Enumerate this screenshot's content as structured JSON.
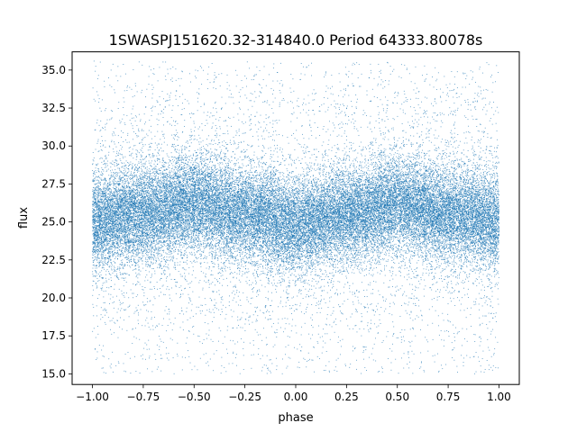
{
  "chart_data": {
    "type": "scatter",
    "title": "1SWASPJ151620.32-314840.0 Period 64333.80078s",
    "xlabel": "phase",
    "ylabel": "flux",
    "xlim": [
      -1.1,
      1.1
    ],
    "ylim": [
      14.3,
      36.2
    ],
    "x_ticks": [
      -1.0,
      -0.75,
      -0.5,
      -0.25,
      0.0,
      0.25,
      0.5,
      0.75,
      1.0
    ],
    "x_tick_labels": [
      "−1.00",
      "−0.75",
      "−0.50",
      "−0.25",
      "0.00",
      "0.25",
      "0.50",
      "0.75",
      "1.00"
    ],
    "y_ticks": [
      15.0,
      17.5,
      20.0,
      22.5,
      25.0,
      27.5,
      30.0,
      32.5,
      35.0
    ],
    "y_tick_labels": [
      "15.0",
      "17.5",
      "20.0",
      "22.5",
      "25.0",
      "27.5",
      "30.0",
      "32.5",
      "35.0"
    ],
    "grid": false,
    "legend": "none",
    "series": [
      {
        "color": "#1f77b4",
        "phase_range": [
          -1.0,
          1.0
        ],
        "approx_point_count": 40000,
        "flux_range": [
          15.0,
          35.6
        ],
        "trend_phase": [
          -1.0,
          -0.75,
          -0.5,
          -0.25,
          0.0,
          0.25,
          0.5,
          0.75,
          1.0
        ],
        "trend_flux": [
          25.0,
          25.6,
          26.2,
          25.6,
          24.8,
          25.5,
          26.2,
          25.6,
          25.0
        ],
        "trend_spread": 1.5
      }
    ]
  }
}
